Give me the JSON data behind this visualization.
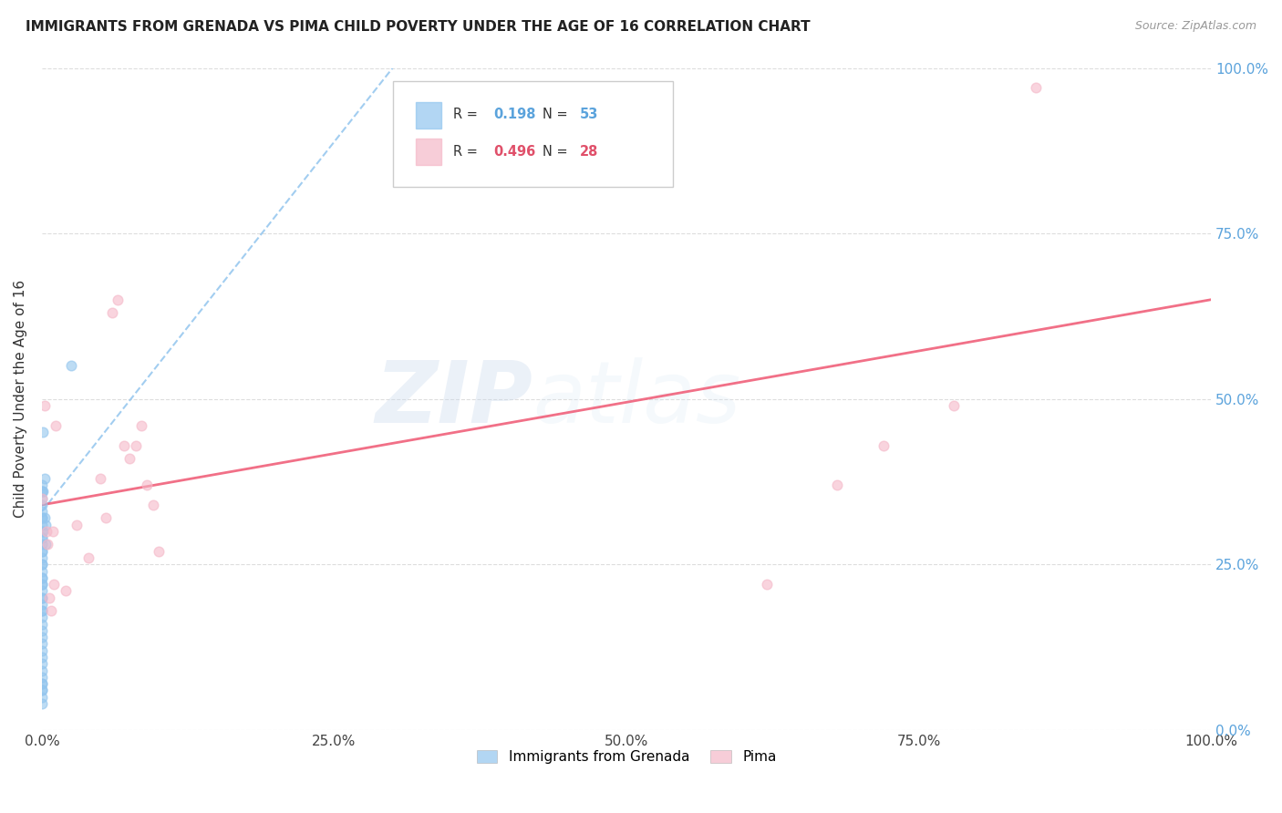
{
  "title": "IMMIGRANTS FROM GRENADA VS PIMA CHILD POVERTY UNDER THE AGE OF 16 CORRELATION CHART",
  "source": "Source: ZipAtlas.com",
  "ylabel": "Child Poverty Under the Age of 16",
  "legend_labels": [
    "Immigrants from Grenada",
    "Pima"
  ],
  "legend_r_blue_val": "0.198",
  "legend_n_blue_val": "53",
  "legend_r_pink_val": "0.496",
  "legend_n_pink_val": "28",
  "color_blue": "#92C5EE",
  "color_pink": "#F5B8C8",
  "color_blue_line": "#92C5EE",
  "color_pink_line": "#F0607A",
  "color_text_blue": "#5BA3DC",
  "color_text_pink": "#E0506A",
  "background": "#FFFFFF",
  "grid_color": "#DDDDDD",
  "watermark_zip": "ZIP",
  "watermark_atlas": "atlas",
  "blue_x": [
    0.0,
    0.0,
    0.0,
    0.0,
    0.0,
    0.0,
    0.0,
    0.0,
    0.0,
    0.0,
    0.0,
    0.0,
    0.0,
    0.0,
    0.0,
    0.0,
    0.0,
    0.0,
    0.0,
    0.0,
    0.0,
    0.0,
    0.0,
    0.0,
    0.0,
    0.0,
    0.0,
    0.0,
    0.0,
    0.0,
    0.0,
    0.0,
    0.0,
    0.0,
    0.0,
    0.0,
    0.0,
    0.0,
    0.0,
    0.0,
    0.0,
    0.0,
    0.0,
    0.0,
    0.0,
    0.001,
    0.001,
    0.001,
    0.002,
    0.002,
    0.003,
    0.003,
    0.025
  ],
  "blue_y": [
    0.04,
    0.05,
    0.06,
    0.06,
    0.07,
    0.07,
    0.08,
    0.09,
    0.1,
    0.11,
    0.12,
    0.13,
    0.14,
    0.15,
    0.16,
    0.17,
    0.18,
    0.19,
    0.2,
    0.21,
    0.22,
    0.23,
    0.24,
    0.25,
    0.26,
    0.27,
    0.28,
    0.29,
    0.3,
    0.31,
    0.32,
    0.33,
    0.34,
    0.35,
    0.36,
    0.37,
    0.36,
    0.32,
    0.29,
    0.27,
    0.25,
    0.23,
    0.22,
    0.2,
    0.18,
    0.36,
    0.3,
    0.45,
    0.32,
    0.38,
    0.31,
    0.28,
    0.55
  ],
  "pink_x": [
    0.0,
    0.002,
    0.004,
    0.005,
    0.006,
    0.008,
    0.009,
    0.01,
    0.012,
    0.02,
    0.03,
    0.04,
    0.05,
    0.055,
    0.06,
    0.065,
    0.07,
    0.075,
    0.08,
    0.085,
    0.09,
    0.095,
    0.1,
    0.62,
    0.68,
    0.72,
    0.78,
    0.85
  ],
  "pink_y": [
    0.35,
    0.49,
    0.3,
    0.28,
    0.2,
    0.18,
    0.3,
    0.22,
    0.46,
    0.21,
    0.31,
    0.26,
    0.38,
    0.32,
    0.63,
    0.65,
    0.43,
    0.41,
    0.43,
    0.46,
    0.37,
    0.34,
    0.27,
    0.22,
    0.37,
    0.43,
    0.49,
    0.97
  ],
  "xlim": [
    0.0,
    1.0
  ],
  "ylim": [
    0.0,
    1.0
  ],
  "blue_trendline_x": [
    0.0,
    0.3
  ],
  "blue_trendline_y": [
    0.33,
    1.0
  ],
  "pink_trendline_x": [
    0.0,
    1.0
  ],
  "pink_trendline_y": [
    0.34,
    0.65
  ],
  "xticks": [
    0.0,
    0.25,
    0.5,
    0.75,
    1.0
  ],
  "yticks": [
    0.0,
    0.25,
    0.5,
    0.75,
    1.0
  ],
  "xtick_labels": [
    "0.0%",
    "25.0%",
    "50.0%",
    "75.0%",
    "100.0%"
  ],
  "ytick_labels_right": [
    "0.0%",
    "25.0%",
    "50.0%",
    "75.0%",
    "100.0%"
  ]
}
